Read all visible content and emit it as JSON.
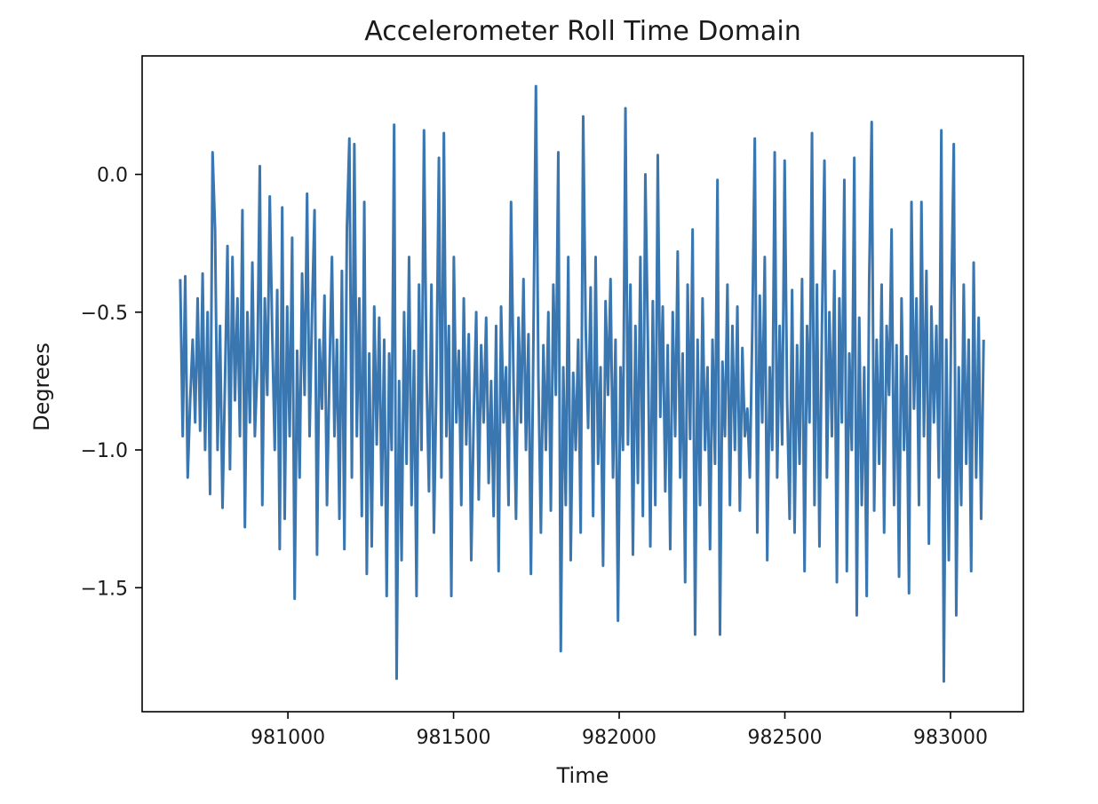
{
  "chart_data": {
    "type": "line",
    "title": "Accelerometer Roll Time Domain",
    "xlabel": "Time",
    "ylabel": "Degrees",
    "xlim": [
      980560,
      983220
    ],
    "ylim": [
      -1.95,
      0.43
    ],
    "xticks": [
      981000,
      981500,
      982000,
      982500,
      983000
    ],
    "xtick_labels": [
      "981000",
      "981500",
      "982000",
      "982500",
      "983000"
    ],
    "yticks": [
      0.0,
      -0.5,
      -1.0,
      -1.5
    ],
    "ytick_labels": [
      "0.0",
      "−0.5",
      "−1.0",
      "−1.5"
    ],
    "grid": false,
    "legend": "none",
    "line_color": "#3a77b1",
    "series": [
      {
        "x_start": 980675,
        "x_end": 983100,
        "values": [
          -0.38,
          -0.95,
          -0.37,
          -1.1,
          -0.82,
          -0.6,
          -0.9,
          -0.45,
          -0.93,
          -0.36,
          -1.0,
          -0.5,
          -1.16,
          0.08,
          -0.2,
          -1.0,
          -0.55,
          -1.21,
          -0.75,
          -0.26,
          -1.07,
          -0.3,
          -0.82,
          -0.45,
          -0.95,
          -0.13,
          -1.28,
          -0.5,
          -0.9,
          -0.32,
          -0.95,
          -0.7,
          0.03,
          -1.2,
          -0.45,
          -0.8,
          -0.08,
          -0.58,
          -1.0,
          -0.42,
          -1.36,
          -0.12,
          -1.25,
          -0.48,
          -0.95,
          -0.23,
          -1.54,
          -0.64,
          -1.1,
          -0.36,
          -0.8,
          -0.07,
          -0.95,
          -0.5,
          -0.13,
          -1.38,
          -0.6,
          -0.85,
          -0.44,
          -1.2,
          -0.72,
          -0.3,
          -0.95,
          -0.6,
          -1.25,
          -0.35,
          -1.36,
          -0.2,
          0.13,
          -1.1,
          0.11,
          -0.95,
          -0.45,
          -1.24,
          -0.1,
          -1.45,
          -0.65,
          -1.35,
          -0.48,
          -0.98,
          -0.52,
          -1.2,
          -0.6,
          -1.53,
          -0.65,
          -1.0,
          0.18,
          -1.83,
          -0.75,
          -1.4,
          -0.5,
          -1.05,
          -0.3,
          -1.2,
          -0.64,
          -1.53,
          -0.4,
          -1.0,
          0.16,
          -0.72,
          -1.15,
          -0.4,
          -1.3,
          -0.75,
          0.06,
          -1.1,
          0.15,
          -0.95,
          -0.55,
          -1.53,
          -0.3,
          -0.9,
          -0.64,
          -1.2,
          -0.45,
          -0.98,
          -0.58,
          -1.4,
          -0.88,
          -0.5,
          -1.18,
          -0.62,
          -0.9,
          -0.52,
          -1.12,
          -0.75,
          -1.24,
          -0.55,
          -1.44,
          -0.48,
          -0.9,
          -0.7,
          -1.2,
          -0.1,
          -0.75,
          -1.25,
          -0.52,
          -0.9,
          -0.38,
          -1.0,
          -0.58,
          -1.45,
          -0.6,
          0.32,
          -0.74,
          -1.3,
          -0.62,
          -1.0,
          -0.5,
          -1.22,
          -0.4,
          -0.8,
          0.08,
          -1.73,
          -0.7,
          -1.2,
          -0.3,
          -1.4,
          -0.72,
          -1.0,
          -0.6,
          -1.3,
          0.21,
          -0.55,
          -0.92,
          -0.41,
          -1.24,
          -0.3,
          -1.05,
          -0.7,
          -1.42,
          -0.46,
          -0.8,
          -0.38,
          -1.1,
          -0.6,
          -1.62,
          -0.7,
          -1.0,
          0.24,
          -0.98,
          -0.4,
          -1.38,
          -0.55,
          -1.12,
          -0.3,
          -1.24,
          0.0,
          -0.6,
          -1.35,
          -0.46,
          -1.2,
          0.07,
          -0.88,
          -0.48,
          -1.15,
          -0.62,
          -1.36,
          -0.5,
          -0.95,
          -0.28,
          -1.1,
          -0.65,
          -1.48,
          -0.4,
          -0.96,
          -0.2,
          -1.67,
          -0.6,
          -1.2,
          -0.45,
          -1.0,
          -0.7,
          -1.36,
          -0.6,
          -1.05,
          -0.02,
          -1.67,
          -0.68,
          -0.95,
          -0.4,
          -1.2,
          -0.55,
          -1.0,
          -0.48,
          -1.22,
          -0.63,
          -0.95,
          -0.85,
          -1.1,
          -0.56,
          0.13,
          -1.3,
          -0.44,
          -0.9,
          -0.3,
          -1.4,
          -0.7,
          -1.0,
          0.08,
          -1.1,
          -0.55,
          -0.98,
          0.05,
          -0.82,
          -1.25,
          -0.42,
          -1.3,
          -0.62,
          -1.05,
          -0.38,
          -1.44,
          -0.55,
          -0.9,
          0.15,
          -1.2,
          -0.4,
          -1.35,
          -0.55,
          0.05,
          -1.1,
          -0.5,
          -0.95,
          -0.35,
          -1.48,
          -0.45,
          -0.9,
          -0.02,
          -1.44,
          -0.65,
          -1.0,
          0.06,
          -1.6,
          -0.52,
          -1.2,
          -0.7,
          -1.53,
          -0.38,
          0.19,
          -1.22,
          -0.6,
          -1.05,
          -0.4,
          -1.3,
          -0.55,
          -0.8,
          -0.2,
          -1.2,
          -0.62,
          -1.46,
          -0.45,
          -1.0,
          -0.66,
          -1.52,
          -0.1,
          -0.85,
          -0.45,
          -1.2,
          -0.1,
          -0.95,
          -0.35,
          -1.34,
          -0.48,
          -0.9,
          -0.55,
          -1.1,
          0.16,
          -1.84,
          -0.6,
          -1.4,
          -0.48,
          0.11,
          -1.6,
          -0.7,
          -1.2,
          -0.4,
          -1.05,
          -0.6,
          -1.44,
          -0.32,
          -1.1,
          -0.52,
          -1.25,
          -0.6
        ]
      }
    ]
  }
}
